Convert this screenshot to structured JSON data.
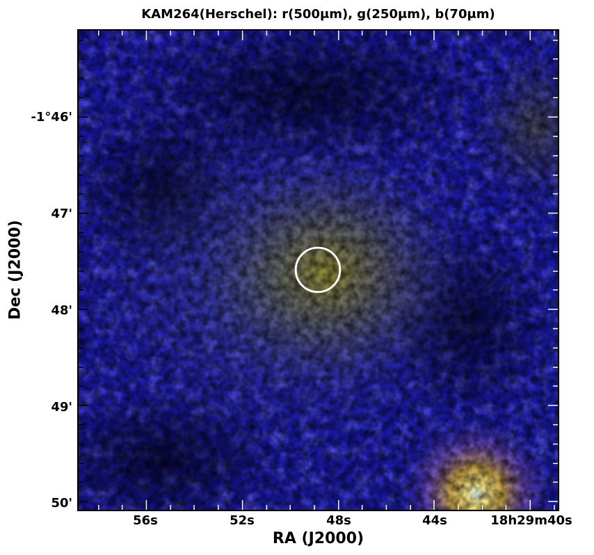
{
  "figure": {
    "title": "KAM264(Herschel): r(500μm), g(250μm), b(70μm)",
    "xlabel": "RA (J2000)",
    "ylabel": "Dec (J2000)",
    "x_ticks": [
      "56s",
      "52s",
      "48s",
      "44s",
      "18h29m40s"
    ],
    "y_ticks": [
      "-1°46'",
      "47'",
      "48'",
      "49'",
      "50'"
    ],
    "colors": {
      "background_blue": "#1a1aa8",
      "warm_glow": "#8a8a20",
      "bright_source": "#ffe8a0",
      "circle": "#ffffff",
      "frame": "#000000"
    }
  }
}
